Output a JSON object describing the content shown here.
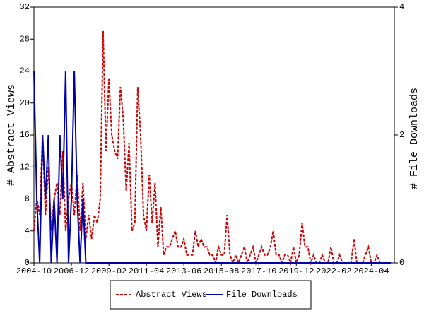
{
  "chart_data": {
    "type": "line",
    "x": [
      "2004-10",
      "2004-12",
      "2005-02",
      "2005-04",
      "2005-06",
      "2005-08",
      "2005-10",
      "2005-12",
      "2006-02",
      "2006-04",
      "2006-06",
      "2006-08",
      "2006-10",
      "2006-12",
      "2007-02",
      "2007-04",
      "2007-06",
      "2007-08",
      "2007-10",
      "2007-12",
      "2008-02",
      "2008-04",
      "2008-06",
      "2008-08",
      "2008-10",
      "2008-12",
      "2009-02",
      "2009-04",
      "2009-06",
      "2009-08",
      "2009-10",
      "2009-12",
      "2010-02",
      "2010-04",
      "2010-06",
      "2010-08",
      "2010-10",
      "2010-12",
      "2011-02",
      "2011-04",
      "2011-06",
      "2011-08",
      "2011-10",
      "2011-12",
      "2012-02",
      "2012-04",
      "2012-06",
      "2012-08",
      "2012-10",
      "2012-12",
      "2013-02",
      "2013-04",
      "2013-06",
      "2013-08",
      "2013-10",
      "2013-12",
      "2014-02",
      "2014-04",
      "2014-06",
      "2014-08",
      "2014-10",
      "2014-12",
      "2015-02",
      "2015-04",
      "2015-06",
      "2015-08",
      "2015-10",
      "2015-12",
      "2016-02",
      "2016-04",
      "2016-06",
      "2016-08",
      "2016-10",
      "2016-12",
      "2017-02",
      "2017-04",
      "2017-06",
      "2017-08",
      "2017-10",
      "2017-12",
      "2018-02",
      "2018-04",
      "2018-06",
      "2018-08",
      "2018-10",
      "2018-12",
      "2019-02",
      "2019-04",
      "2019-06",
      "2019-08",
      "2019-10",
      "2019-12",
      "2020-02",
      "2020-04",
      "2020-06",
      "2020-08",
      "2020-10",
      "2020-12",
      "2021-02",
      "2021-04",
      "2021-06",
      "2021-08",
      "2021-10",
      "2021-12",
      "2022-02",
      "2022-04",
      "2022-06",
      "2022-08",
      "2022-10",
      "2022-12",
      "2023-02",
      "2023-04",
      "2023-06",
      "2023-08",
      "2023-10",
      "2023-12",
      "2024-02",
      "2024-04",
      "2024-06",
      "2024-08",
      "2024-10",
      "2024-12",
      "2025-02",
      "2025-04",
      "2025-06"
    ],
    "series": [
      {
        "name": "Abstract Views",
        "color": "#cc0000",
        "dash": true,
        "values": [
          4,
          8,
          6,
          16,
          6,
          12,
          4,
          8,
          10,
          6,
          14,
          4,
          8,
          10,
          6,
          11,
          4,
          10,
          3,
          6,
          3,
          6,
          5,
          8,
          29,
          14,
          23,
          16,
          14,
          13,
          22,
          18,
          9,
          15,
          4,
          5,
          22,
          16,
          6,
          4,
          11,
          5,
          10,
          2,
          7,
          1,
          2,
          2,
          3,
          4,
          2,
          2,
          3,
          1,
          1,
          1,
          4,
          2,
          3,
          2,
          2,
          1,
          1,
          0,
          2,
          1,
          1,
          6,
          1,
          0,
          1,
          0,
          1,
          2,
          0,
          1,
          2,
          0,
          1,
          2,
          1,
          1,
          2,
          4,
          1,
          1,
          0,
          1,
          1,
          0,
          2,
          0,
          1,
          5,
          2,
          2,
          0,
          1,
          0,
          0,
          1,
          0,
          0,
          2,
          0,
          0,
          1,
          0,
          0,
          0,
          0,
          3,
          0,
          0,
          0,
          1,
          2,
          0,
          0,
          1,
          0,
          0,
          0,
          0,
          0
        ]
      },
      {
        "name": "File Downloads",
        "color": "#0000aa",
        "dash": false,
        "axis": "y2",
        "values": [
          3,
          1,
          0,
          2,
          1,
          2,
          0,
          1,
          0,
          2,
          1,
          3,
          0,
          1,
          3,
          1,
          0,
          1,
          0,
          0,
          0,
          0,
          0,
          0,
          0,
          0,
          0,
          0,
          0,
          0,
          0,
          0,
          0,
          0,
          0,
          0,
          0,
          0,
          0,
          0,
          0,
          0,
          0,
          0,
          0,
          0,
          0,
          0,
          0,
          0,
          0,
          0,
          0,
          0,
          0,
          0,
          0,
          0,
          0,
          0,
          0,
          0,
          0,
          0,
          0,
          0,
          0,
          0,
          0,
          0,
          0,
          0,
          0,
          0,
          0,
          0,
          0,
          0,
          0,
          0,
          0,
          0,
          0,
          0,
          0,
          0,
          0,
          0,
          0,
          0,
          0,
          0,
          0,
          0,
          0,
          0,
          0,
          0,
          0,
          0,
          0,
          0,
          0,
          0,
          0,
          0,
          0,
          0,
          0,
          0,
          0,
          0,
          0,
          0,
          0,
          0,
          0,
          0,
          0,
          0,
          0,
          0,
          0,
          0,
          0
        ]
      }
    ],
    "xlim": [
      "2004-10",
      "2025-08"
    ],
    "xticks": [
      "2004-10",
      "2006-12",
      "2009-02",
      "2011-04",
      "2013-06",
      "2015-08",
      "2017-10",
      "2019-12",
      "2022-02",
      "2024-04"
    ],
    "ylabel": "# Abstract Views",
    "ylim": [
      0,
      32
    ],
    "yticks": [
      0,
      4,
      8,
      12,
      16,
      20,
      24,
      28,
      32
    ],
    "y2label": "# File Downloads",
    "y2lim": [
      0,
      4
    ],
    "y2ticks": [
      0,
      2,
      4
    ]
  }
}
